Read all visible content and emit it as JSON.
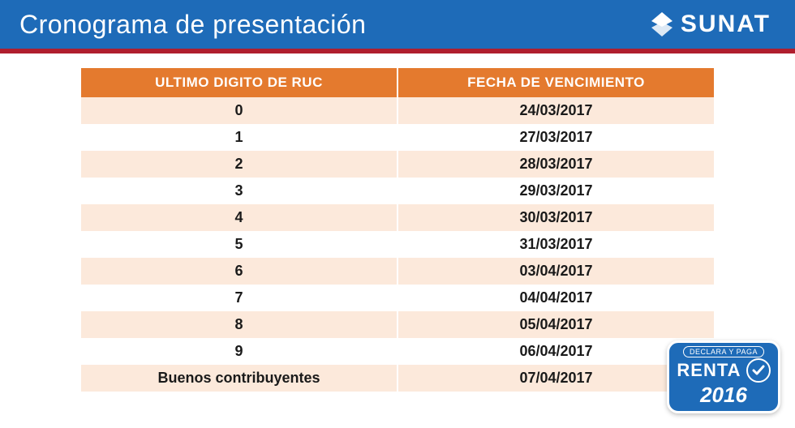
{
  "header": {
    "title": "Cronograma de presentación",
    "logo_text": "SUNAT",
    "bar_bg": "#1e6bb8",
    "accent_stripe": "#b01e2e"
  },
  "table": {
    "header_bg": "#e47a2e",
    "header_fg": "#ffffff",
    "row_odd_bg": "#fce9db",
    "row_even_bg": "#ffffff",
    "text_color": "#1a1a1a",
    "columns": [
      "ULTIMO DIGITO DE RUC",
      "FECHA DE VENCIMIENTO"
    ],
    "rows": [
      [
        "0",
        "24/03/2017"
      ],
      [
        "1",
        "27/03/2017"
      ],
      [
        "2",
        "28/03/2017"
      ],
      [
        "3",
        "29/03/2017"
      ],
      [
        "4",
        "30/03/2017"
      ],
      [
        "5",
        "31/03/2017"
      ],
      [
        "6",
        "03/04/2017"
      ],
      [
        "7",
        "04/04/2017"
      ],
      [
        "8",
        "05/04/2017"
      ],
      [
        "9",
        "06/04/2017"
      ],
      [
        "Buenos contribuyentes",
        "07/04/2017"
      ]
    ]
  },
  "badge": {
    "top": "DECLARA Y PAGA",
    "renta": "RENTA",
    "year": "2016",
    "bg": "#1e6bb8"
  }
}
